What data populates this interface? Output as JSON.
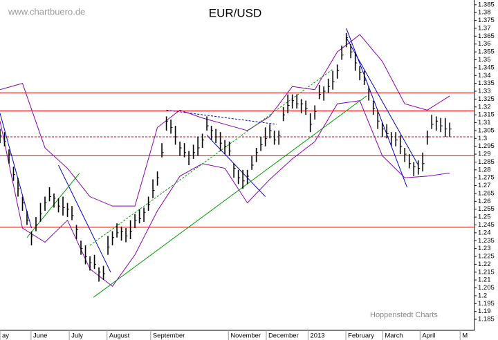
{
  "chart_data": {
    "type": "ohlc",
    "title": "EUR/USD",
    "watermark": "www.chartbuero.de",
    "source": "Hoppenstedt Charts",
    "color": "#000000",
    "xlim": [
      0,
      105.5
    ],
    "ylim": [
      1.178,
      1.388
    ],
    "yticks": [
      1.185,
      1.19,
      1.195,
      1.2,
      1.205,
      1.21,
      1.215,
      1.22,
      1.225,
      1.23,
      1.235,
      1.24,
      1.245,
      1.25,
      1.255,
      1.26,
      1.265,
      1.27,
      1.275,
      1.28,
      1.285,
      1.29,
      1.295,
      1.3,
      1.305,
      1.31,
      1.315,
      1.32,
      1.325,
      1.33,
      1.335,
      1.34,
      1.345,
      1.35,
      1.355,
      1.36,
      1.365,
      1.37,
      1.375,
      1.38,
      1.385
    ],
    "xticks": [
      {
        "value": 0,
        "label": "ay"
      },
      {
        "value": 6.9,
        "label": "June"
      },
      {
        "value": 15.4,
        "label": "July"
      },
      {
        "value": 23.8,
        "label": "August"
      },
      {
        "value": 33.5,
        "label": "September"
      },
      {
        "value": 50.8,
        "label": "November"
      },
      {
        "value": 59.2,
        "label": "December"
      },
      {
        "value": 68.5,
        "label": "2013"
      },
      {
        "value": 76.9,
        "label": "February"
      },
      {
        "value": 85.1,
        "label": "March"
      },
      {
        "value": 93.4,
        "label": "April"
      },
      {
        "value": 102.3,
        "label": "M"
      }
    ],
    "high": [
      1.306,
      1.304,
      1.293,
      1.282,
      1.275,
      1.263,
      1.254,
      1.241,
      1.25,
      1.259,
      1.263,
      1.269,
      1.265,
      1.262,
      1.263,
      1.259,
      1.257,
      1.245,
      1.235,
      1.232,
      1.225,
      1.226,
      1.218,
      1.219,
      1.238,
      1.241,
      1.246,
      1.244,
      1.243,
      1.248,
      1.252,
      1.255,
      1.256,
      1.263,
      1.274,
      1.279,
      1.297,
      1.314,
      1.312,
      1.308,
      1.298,
      1.297,
      1.292,
      1.296,
      1.301,
      1.303,
      1.314,
      1.308,
      1.306,
      1.304,
      1.299,
      1.298,
      1.284,
      1.28,
      1.28,
      1.28,
      1.289,
      1.294,
      1.301,
      1.307,
      1.309,
      1.305,
      1.305,
      1.32,
      1.328,
      1.328,
      1.328,
      1.325,
      1.324,
      1.316,
      1.321,
      1.334,
      1.333,
      1.338,
      1.343,
      1.347,
      1.359,
      1.367,
      1.36,
      1.355,
      1.346,
      1.343,
      1.333,
      1.324,
      1.318,
      1.31,
      1.309,
      1.304,
      1.304,
      1.302,
      1.294,
      1.29,
      1.285,
      1.286,
      1.291,
      1.305,
      1.315,
      1.314,
      1.313,
      1.313,
      1.31
    ],
    "low": [
      1.297,
      1.295,
      1.284,
      1.273,
      1.263,
      1.254,
      1.245,
      1.232,
      1.241,
      1.247,
      1.254,
      1.26,
      1.256,
      1.253,
      1.251,
      1.25,
      1.248,
      1.236,
      1.226,
      1.22,
      1.216,
      1.217,
      1.209,
      1.21,
      1.226,
      1.232,
      1.237,
      1.235,
      1.234,
      1.236,
      1.243,
      1.246,
      1.247,
      1.254,
      1.262,
      1.27,
      1.288,
      1.305,
      1.303,
      1.296,
      1.289,
      1.288,
      1.283,
      1.287,
      1.289,
      1.294,
      1.305,
      1.299,
      1.297,
      1.292,
      1.29,
      1.289,
      1.275,
      1.271,
      1.268,
      1.271,
      1.28,
      1.285,
      1.292,
      1.295,
      1.3,
      1.296,
      1.296,
      1.311,
      1.316,
      1.319,
      1.319,
      1.316,
      1.315,
      1.304,
      1.312,
      1.325,
      1.324,
      1.329,
      1.331,
      1.338,
      1.35,
      1.358,
      1.351,
      1.343,
      1.337,
      1.334,
      1.324,
      1.315,
      1.306,
      1.301,
      1.3,
      1.295,
      1.295,
      1.29,
      1.285,
      1.281,
      1.276,
      1.277,
      1.279,
      1.296,
      1.306,
      1.305,
      1.304,
      1.301,
      1.301
    ],
    "close": [
      1.302,
      1.298,
      1.29,
      1.277,
      1.268,
      1.259,
      1.248,
      1.238,
      1.245,
      1.252,
      1.259,
      1.263,
      1.262,
      1.257,
      1.256,
      1.255,
      1.251,
      1.242,
      1.23,
      1.225,
      1.221,
      1.22,
      1.215,
      1.214,
      1.231,
      1.237,
      1.24,
      1.241,
      1.238,
      1.241,
      1.248,
      1.249,
      1.253,
      1.258,
      1.267,
      1.275,
      1.291,
      1.311,
      1.307,
      1.301,
      1.294,
      1.291,
      1.289,
      1.291,
      1.294,
      1.299,
      1.308,
      1.305,
      1.301,
      1.297,
      1.295,
      1.292,
      1.281,
      1.275,
      1.273,
      1.276,
      1.283,
      1.291,
      1.296,
      1.3,
      1.305,
      1.299,
      1.302,
      1.315,
      1.321,
      1.324,
      1.322,
      1.322,
      1.319,
      1.309,
      1.317,
      1.328,
      1.33,
      1.333,
      1.336,
      1.343,
      1.353,
      1.364,
      1.355,
      1.348,
      1.342,
      1.337,
      1.33,
      1.319,
      1.311,
      1.306,
      1.303,
      1.301,
      1.299,
      1.295,
      1.29,
      1.284,
      1.282,
      1.281,
      1.284,
      1.301,
      1.309,
      1.311,
      1.308,
      1.306,
      1.306
    ],
    "bands": {
      "color": "#8800aa",
      "x": [
        0,
        5,
        10,
        15,
        20,
        25,
        30,
        35,
        40,
        45,
        50,
        55,
        60,
        65,
        70,
        75,
        80,
        85,
        90,
        95,
        100
      ],
      "upper": [
        1.331,
        1.335,
        1.294,
        1.281,
        1.263,
        1.257,
        1.257,
        1.307,
        1.318,
        1.313,
        1.309,
        1.305,
        1.314,
        1.333,
        1.331,
        1.355,
        1.366,
        1.349,
        1.322,
        1.318,
        1.327
      ],
      "lower": [
        1.311,
        1.243,
        1.234,
        1.248,
        1.217,
        1.206,
        1.226,
        1.254,
        1.276,
        1.284,
        1.281,
        1.259,
        1.274,
        1.287,
        1.298,
        1.322,
        1.324,
        1.289,
        1.275,
        1.276,
        1.278
      ]
    },
    "levels": {
      "color": "#dd0000",
      "values": [
        1.329,
        1.3175,
        1.301,
        1.289,
        1.2435
      ],
      "dashed": [
        false,
        false,
        true,
        false,
        false
      ]
    },
    "trendlines": [
      {
        "color": "#0000cc",
        "dashed": false,
        "x": [
          0,
          7
        ],
        "values": [
          1.316,
          1.243
        ]
      },
      {
        "color": "#0000cc",
        "dashed": false,
        "x": [
          13,
          24.6
        ],
        "values": [
          1.283,
          1.215
        ]
      },
      {
        "color": "#0000cc",
        "dashed": false,
        "x": [
          46,
          59
        ],
        "values": [
          1.302,
          1.263
        ]
      },
      {
        "color": "#0000cc",
        "dashed": false,
        "x": [
          77,
          90.5
        ],
        "values": [
          1.37,
          1.269
        ]
      },
      {
        "color": "#0000cc",
        "dashed": false,
        "x": [
          77,
          93
        ],
        "values": [
          1.364,
          1.283
        ]
      },
      {
        "color": "#0000cc",
        "dashed": true,
        "x": [
          37,
          61.5
        ],
        "values": [
          1.318,
          1.309
        ]
      },
      {
        "color": "#009900",
        "dashed": false,
        "x": [
          6,
          17.7
        ],
        "values": [
          1.237,
          1.278
        ]
      },
      {
        "color": "#009900",
        "dashed": false,
        "x": [
          20.8,
          81.5
        ],
        "values": [
          1.199,
          1.327
        ]
      },
      {
        "color": "#009900",
        "dashed": true,
        "x": [
          20,
          74
        ],
        "values": [
          1.232,
          1.344
        ]
      }
    ]
  }
}
